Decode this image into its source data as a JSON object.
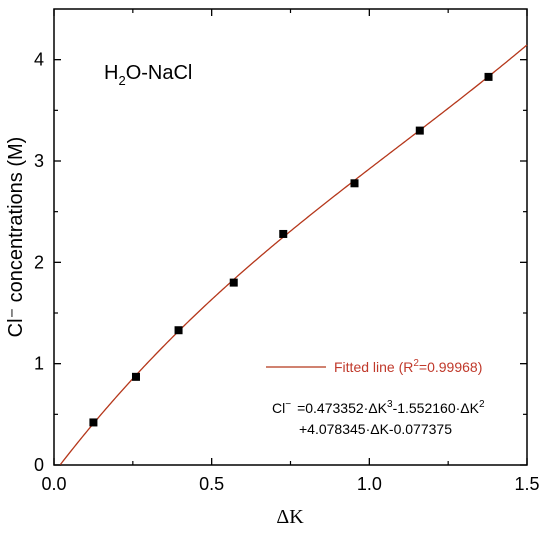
{
  "chart_data": {
    "type": "scatter",
    "annotation_main": "H",
    "annotation_sub": "2",
    "annotation_rest": "O-NaCl",
    "xlabel": "ΔK",
    "ylabel": "Cl⁻ concentrations (M)",
    "xlim": [
      0.0,
      1.5
    ],
    "ylim": [
      0,
      4.5
    ],
    "x_ticks": [
      "0.0",
      "0.5",
      "1.0",
      "1.5"
    ],
    "y_ticks": [
      "0",
      "1",
      "2",
      "3",
      "4"
    ],
    "grid": false,
    "legend_position": "bottom-right",
    "colors": {
      "fit_line": "#b5371b",
      "points": "#000000",
      "legend_text": "#c0392b"
    },
    "series": [
      {
        "name": "",
        "type": "scatter",
        "x": [
          0.125,
          0.26,
          0.395,
          0.57,
          0.727,
          0.953,
          1.16,
          1.378
        ],
        "y": [
          0.42,
          0.87,
          1.33,
          1.8,
          2.28,
          2.78,
          3.3,
          3.83
        ]
      },
      {
        "name": "Fitted line (R²=0.99968)",
        "type": "line",
        "formula_coefficients": [
          0.473352,
          -1.55216,
          4.078345,
          -0.077375
        ]
      }
    ],
    "legend": {
      "label_pre": "Fitted line (R",
      "label_sup": "2",
      "label_post": "=0.99968)"
    },
    "equation": {
      "line1_a": "Cl",
      "line1_minus": "−",
      "line1_b": "=0.473352·ΔK",
      "line1_sup3": "3",
      "line1_c": "-1.552160·ΔK",
      "line1_sup2": "2",
      "line2": "+4.078345·ΔK-0.077375"
    }
  }
}
